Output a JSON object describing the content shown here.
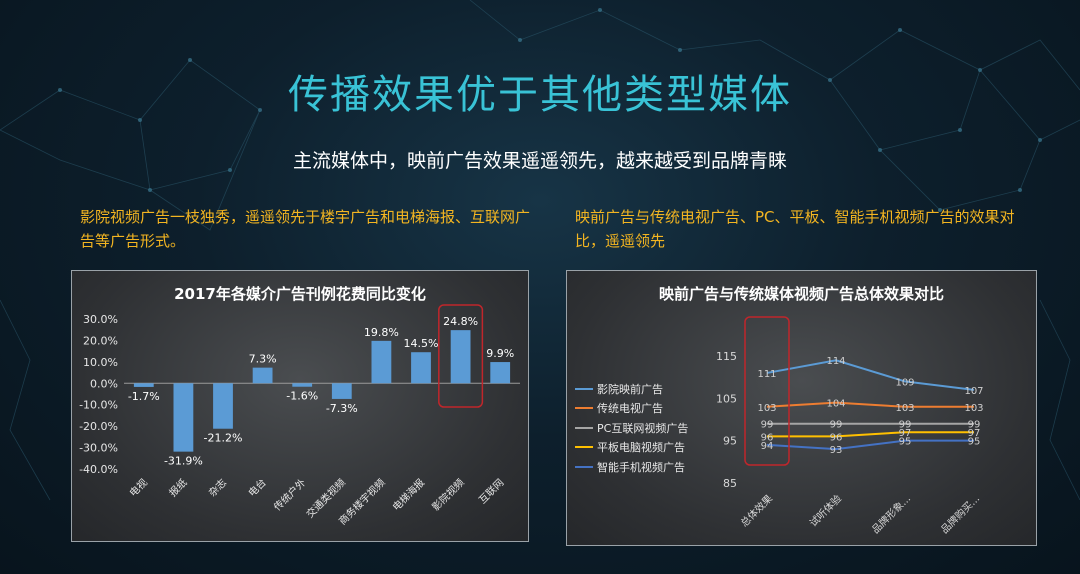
{
  "page": {
    "title": "传播效果优于其他类型媒体",
    "subtitle": "主流媒体中，映前广告效果遥遥领先，越来越受到品牌青睐",
    "desc_left": "影院视频广告一枝独秀，遥遥领先于楼宇广告和电梯海报、互联网广告等广告形式。",
    "desc_right": "映前广告与传统电视广告、PC、平板、智能手机视频广告的效果对比，遥遥领先"
  },
  "colors": {
    "title": "#39c3d6",
    "highlight_text": "#f3b521",
    "bar": "#5b9bd5",
    "highlight_box": "#c0262b"
  },
  "chart_data": [
    {
      "type": "bar",
      "title": "2017年各媒介广告刊例花费同比变化",
      "categories": [
        "电视",
        "报纸",
        "杂志",
        "电台",
        "传统户外",
        "交通类视频",
        "商务楼宇视频",
        "电梯海报",
        "影院视频",
        "互联网"
      ],
      "values": [
        -1.7,
        -31.9,
        -21.2,
        7.3,
        -1.6,
        -7.3,
        19.8,
        14.5,
        24.8,
        9.9
      ],
      "data_labels": [
        "-1.7%",
        "-31.9%",
        "-21.2%",
        "7.3%",
        "-1.6%",
        "-7.3%",
        "19.8%",
        "14.5%",
        "24.8%",
        "9.9%"
      ],
      "ylim": [
        -40,
        30
      ],
      "yticks": [
        "30.0%",
        "20.0%",
        "10.0%",
        "0.0%",
        "-10.0%",
        "-20.0%",
        "-30.0%",
        "-40.0%"
      ],
      "highlight": "影院视频",
      "grid": false
    },
    {
      "type": "line",
      "title": "映前广告与传统媒体视频广告总体效果对比",
      "categories": [
        "总体效果",
        "试听体验",
        "品牌形象...",
        "品牌购买..."
      ],
      "ylim": [
        85,
        115
      ],
      "yticks": [
        "115",
        "105",
        "95",
        "85"
      ],
      "legend_position": "left",
      "highlight": "总体效果",
      "series": [
        {
          "name": "影院映前广告",
          "color": "#5b9bd5",
          "values": [
            111,
            114,
            109,
            107
          ]
        },
        {
          "name": "传统电视广告",
          "color": "#ed7d31",
          "values": [
            103,
            104,
            103,
            103
          ]
        },
        {
          "name": "PC互联网视频广告",
          "color": "#a5a5a5",
          "values": [
            99,
            99,
            99,
            99
          ]
        },
        {
          "name": "平板电脑视频广告",
          "color": "#ffc000",
          "values": [
            96,
            96,
            97,
            97
          ]
        },
        {
          "name": "智能手机视频广告",
          "color": "#4472c4",
          "values": [
            94,
            93,
            95,
            95
          ]
        }
      ]
    }
  ]
}
